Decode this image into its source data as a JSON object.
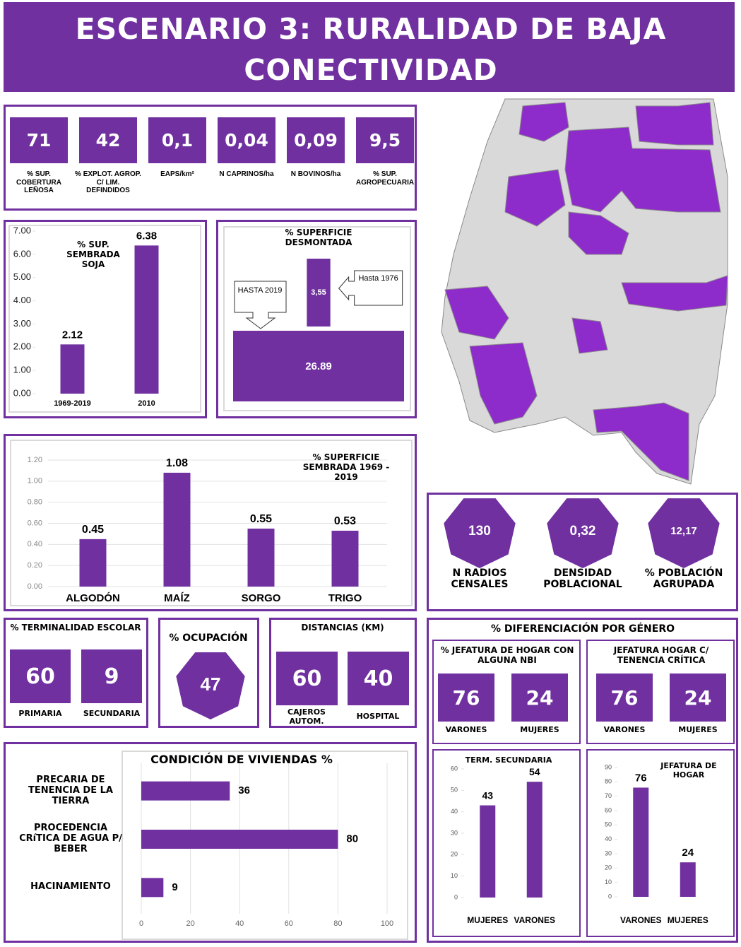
{
  "title": "ESCENARIO 3: RURALIDAD DE BAJA CONECTIVIDAD",
  "indicators": [
    {
      "value": "71",
      "label": "% SUP. COBERTURA LEÑOSA"
    },
    {
      "value": "42",
      "label": "% EXPLOT. AGROP. C/ LIM. DEFINDIDOS"
    },
    {
      "value": "0,1",
      "label": "EAPS/km²"
    },
    {
      "value": "0,04",
      "label": "N CAPRINOS/ha"
    },
    {
      "value": "0,09",
      "label": "N BOVINOS/ha"
    },
    {
      "value": "9,5",
      "label": "% SUP. AGROPECUARIA"
    }
  ],
  "chart_data": [
    {
      "type": "bar",
      "title": "% SUP. SEMBRADA SOJA",
      "categories": [
        "1969-2019",
        "2010"
      ],
      "values": [
        2.12,
        6.38
      ],
      "color": "#7030a0",
      "ylim": [
        0,
        7
      ],
      "yticks": [
        {
          "value": 0,
          "label": "0.00"
        },
        {
          "value": 1,
          "label": "1.00"
        },
        {
          "value": 2,
          "label": "2.00"
        },
        {
          "value": 3,
          "label": "3.00"
        },
        {
          "value": 4,
          "label": "4.00"
        },
        {
          "value": 5,
          "label": "5.00"
        },
        {
          "value": 6,
          "label": "6.00"
        },
        {
          "value": 7,
          "label": "7.00"
        }
      ],
      "grid": false
    },
    {
      "type": "block",
      "title": "% SUPERFICIE DESMONTADA",
      "categories": [
        "Hasta 1976",
        "HASTA 2019"
      ],
      "values": [
        3.55,
        26.89
      ],
      "value_labels": [
        "3,55",
        "26.89"
      ],
      "color": "#7030a0"
    },
    {
      "type": "bar",
      "title": "% SUPERFICIE SEMBRADA 1969 - 2019",
      "categories": [
        "ALGODÓN",
        "MAÍZ",
        "SORGO",
        "TRIGO"
      ],
      "values": [
        0.45,
        1.08,
        0.55,
        0.53
      ],
      "color": "#7030a0",
      "ylim": [
        0,
        1.2
      ],
      "yticks": [
        {
          "value": 0,
          "label": "0.00"
        },
        {
          "value": 0.2,
          "label": "0.20"
        },
        {
          "value": 0.4,
          "label": "0.40"
        },
        {
          "value": 0.6,
          "label": "0.60"
        },
        {
          "value": 0.8,
          "label": "0.80"
        },
        {
          "value": 1,
          "label": "1.00"
        },
        {
          "value": 1.2,
          "label": "1.20"
        }
      ],
      "grid": true
    },
    {
      "type": "hbar",
      "title": "CONDICIÓN DE VIVIENDAS %",
      "categories": [
        "PRECARIA DE TENENCIA DE LA TIERRA",
        "PROCEDENCIA CRíTICA DE AGUA P/ BEBER",
        "HACINAMIENTO"
      ],
      "values": [
        36,
        80,
        9
      ],
      "color": "#7030a0",
      "xlim": [
        0,
        100
      ],
      "xticks": [
        0,
        20,
        40,
        60,
        80,
        100
      ],
      "grid": true
    },
    {
      "type": "bar",
      "title": "TERM. SECUNDARIA",
      "categories": [
        "MUJERES",
        "VARONES"
      ],
      "values": [
        43,
        54
      ],
      "color": "#7030a0",
      "ylim": [
        0,
        60
      ],
      "yticks": [
        0,
        10,
        20,
        30,
        40,
        50,
        60
      ],
      "grid": false
    },
    {
      "type": "bar",
      "title": "JEFATURA DE HOGAR",
      "categories": [
        "VARONES",
        "MUJERES"
      ],
      "values": [
        76,
        24
      ],
      "color": "#7030a0",
      "ylim": [
        0,
        90
      ],
      "yticks": [
        0,
        10,
        20,
        30,
        40,
        50,
        60,
        70,
        80,
        90
      ],
      "grid": false
    }
  ],
  "poblacion": [
    {
      "value": "130",
      "label": "N RADIOS CENSALES"
    },
    {
      "value": "0,32",
      "label": "DENSIDAD POBLACIONAL"
    },
    {
      "value": "12,17",
      "label": "% POBLACIÓN AGRUPADA"
    }
  ],
  "terminalidad": {
    "title": "% TERMINALIDAD ESCOLAR",
    "items": [
      {
        "value": "60",
        "label": "PRIMARIA"
      },
      {
        "value": "9",
        "label": "SECUNDARIA"
      }
    ]
  },
  "ocupacion": {
    "title": "% OCUPACIÓN",
    "value": "47"
  },
  "distancias": {
    "title": "DISTANCIAS (KM)",
    "items": [
      {
        "value": "60",
        "label": "CAJEROS AUTOM."
      },
      {
        "value": "40",
        "label": "HOSPITAL"
      }
    ]
  },
  "genero": {
    "title": "% DIFERENCIACIÓN POR GÉNERO",
    "groups": [
      {
        "title": "% JEFATURA DE HOGAR CON ALGUNA NBI",
        "items": [
          {
            "value": "76",
            "label": "VARONES"
          },
          {
            "value": "24",
            "label": "MUJERES"
          }
        ]
      },
      {
        "title": "JEFATURA HOGAR C/ TENENCIA CRÍTICA",
        "items": [
          {
            "value": "76",
            "label": "VARONES"
          },
          {
            "value": "24",
            "label": "MUJERES"
          }
        ]
      }
    ]
  }
}
